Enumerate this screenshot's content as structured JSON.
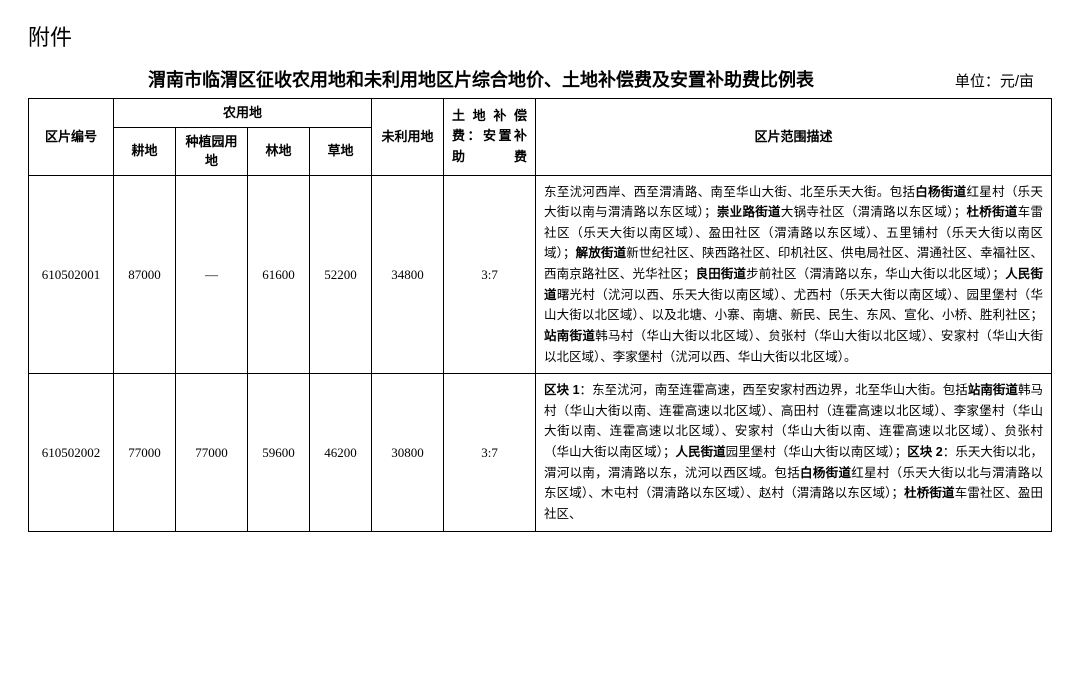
{
  "attachment_label": "附件",
  "title": "渭南市临渭区征收农用地和未利用地区片综合地价、土地补偿费及安置补助费比例表",
  "unit": "单位：元/亩",
  "headers": {
    "zone_id": "区片编号",
    "farmland_group": "农用地",
    "arable": "耕地",
    "plantation": "种植园用地",
    "forest": "林地",
    "grass": "草地",
    "unused": "未利用地",
    "ratio_l1": "土地补偿",
    "ratio_l2": "费：安置补",
    "ratio_l3": "助费",
    "desc": "区片范围描述"
  },
  "rows": [
    {
      "zone_id": "610502001",
      "arable": "87000",
      "plantation": "—",
      "forest": "61600",
      "grass": "52200",
      "unused": "34800",
      "ratio": "3:7",
      "desc_html": "东至沋河西岸、西至渭清路、南至华山大街、北至乐天大街。包括<b>白杨街道</b>红星村（乐天大街以南与渭清路以东区域）；<b>崇业路街道</b>大锅寺社区（渭清路以东区域）；<b>杜桥街道</b>车雷社区（乐天大街以南区域）、盈田社区（渭清路以东区域）、五里铺村（乐天大街以南区域）；<b>解放街道</b>新世纪社区、陕西路社区、印机社区、供电局社区、渭通社区、幸福社区、西南京路社区、光华社区；<b>良田街道</b>步前社区（渭清路以东，华山大街以北区域）；<b>人民街道</b>曙光村（沋河以西、乐天大街以南区域）、尤西村（乐天大街以南区域）、园里堡村（华山大街以北区域）、以及北塘、小寨、南塘、新民、民生、东风、宣化、小桥、胜利社区；<b>站南街道</b>韩马村（华山大街以北区域）、贠张村（华山大街以北区域）、安家村（华山大街以北区域）、李家堡村（沋河以西、华山大街以北区域）。"
    },
    {
      "zone_id": "610502002",
      "arable": "77000",
      "plantation": "77000",
      "forest": "59600",
      "grass": "46200",
      "unused": "30800",
      "ratio": "3:7",
      "desc_html": "<b>区块 1</b>：东至沋河，南至连霍高速，西至安家村西边界，北至华山大街。包括<b>站南街道</b>韩马村（华山大街以南、连霍高速以北区域）、高田村（连霍高速以北区域）、李家堡村（华山大街以南、连霍高速以北区域）、安家村（华山大街以南、连霍高速以北区域）、贠张村（华山大街以南区域）；<b>人民街道</b>园里堡村（华山大街以南区域）；<b>区块 2</b>：乐天大街以北，渭河以南，渭清路以东，沋河以西区域。包括<b>白杨街道</b>红星村（乐天大街以北与渭清路以东区域）、木屯村（渭清路以东区域）、赵村（渭清路以东区域）；<b>杜桥街道</b>车雷社区、盈田社区、"
    }
  ]
}
